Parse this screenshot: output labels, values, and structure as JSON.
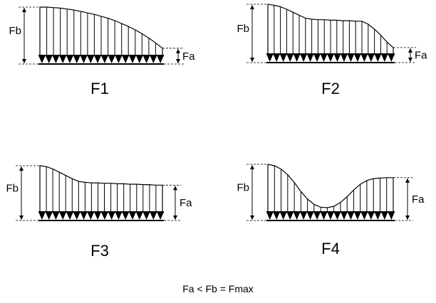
{
  "caption": "Fa < Fb = Fmax",
  "dimension_labels": {
    "high": "Fb",
    "low": "Fa"
  },
  "diagrams": [
    {
      "id": "F1",
      "label": "F1",
      "profile": [
        1,
        1,
        0.99,
        0.98,
        0.96,
        0.94,
        0.91,
        0.88,
        0.85,
        0.81,
        0.77,
        0.72,
        0.66,
        0.6,
        0.53,
        0.45,
        0.36,
        0.26,
        0.15
      ]
    },
    {
      "id": "F2",
      "label": "F2",
      "profile": [
        1,
        0.98,
        0.95,
        0.9,
        0.84,
        0.78,
        0.72,
        0.7,
        0.69,
        0.69,
        0.68,
        0.68,
        0.67,
        0.67,
        0.66,
        0.66,
        0.6,
        0.5,
        0.38,
        0.24,
        0.13
      ]
    },
    {
      "id": "F3",
      "label": "F3",
      "profile": [
        1,
        0.98,
        0.93,
        0.86,
        0.79,
        0.72,
        0.66,
        0.64,
        0.63,
        0.63,
        0.62,
        0.62,
        0.61,
        0.61,
        0.6,
        0.6,
        0.59,
        0.59,
        0.58,
        0.58
      ]
    },
    {
      "id": "F4",
      "label": "F4",
      "profile": [
        1,
        0.97,
        0.9,
        0.78,
        0.62,
        0.43,
        0.27,
        0.16,
        0.1,
        0.09,
        0.12,
        0.2,
        0.32,
        0.46,
        0.58,
        0.66,
        0.7,
        0.71,
        0.72,
        0.72
      ]
    }
  ]
}
